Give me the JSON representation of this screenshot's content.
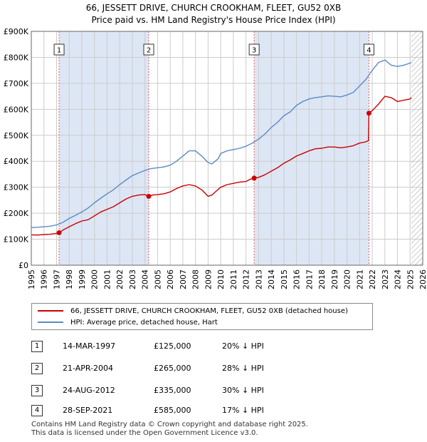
{
  "title_line1": "66, JESSETT DRIVE, CHURCH CROOKHAM, FLEET, GU52 0XB",
  "title_line2": "Price paid vs. HM Land Registry's House Price Index (HPI)",
  "colors": {
    "property": "#cc0000",
    "hpi": "#5b8ac6",
    "shade": "#dde6f4",
    "grid": "#cccccc",
    "marker_line": "#e06060"
  },
  "chart_data": {
    "type": "line",
    "title": "Price paid vs. HM Land Registry's House Price Index (HPI)",
    "xlabel": "",
    "ylabel": "",
    "xlim": [
      1995,
      2026
    ],
    "ylim": [
      0,
      900000
    ],
    "yticks": [
      0,
      100000,
      200000,
      300000,
      400000,
      500000,
      600000,
      700000,
      800000,
      900000
    ],
    "ytick_labels": [
      "£0",
      "£100K",
      "£200K",
      "£300K",
      "£400K",
      "£500K",
      "£600K",
      "£700K",
      "£800K",
      "£900K"
    ],
    "xticks": [
      1995,
      1996,
      1997,
      1998,
      1999,
      2000,
      2001,
      2002,
      2003,
      2004,
      2005,
      2006,
      2007,
      2008,
      2009,
      2010,
      2011,
      2012,
      2013,
      2014,
      2015,
      2016,
      2017,
      2018,
      2019,
      2020,
      2021,
      2022,
      2023,
      2024,
      2025,
      2026
    ],
    "shaded_x_ranges": [
      [
        1997.2,
        2004.3
      ],
      [
        2012.65,
        2021.74
      ]
    ],
    "hatched_after": 2025.1,
    "series": [
      {
        "name": "66, JESSETT DRIVE, CHURCH CROOKHAM, FLEET, GU52 0XB (detached house)",
        "x": [
          1995,
          1995.5,
          1996,
          1996.5,
          1997,
          1997.2,
          1997.5,
          1998,
          1998.5,
          1999,
          1999.5,
          2000,
          2000.5,
          2001,
          2001.5,
          2002,
          2002.5,
          2003,
          2003.5,
          2004,
          2004.3,
          2004.6,
          2005,
          2005.5,
          2006,
          2006.5,
          2007,
          2007.5,
          2008,
          2008.5,
          2009,
          2009.3,
          2009.8,
          2010,
          2010.5,
          2011,
          2011.5,
          2012,
          2012.3,
          2012.65,
          2013,
          2013.5,
          2014,
          2014.5,
          2015,
          2015.5,
          2016,
          2016.5,
          2017,
          2017.5,
          2018,
          2018.5,
          2019,
          2019.5,
          2020,
          2020.5,
          2021,
          2021.5,
          2021.7,
          2021.74,
          2022,
          2022.5,
          2023,
          2023.5,
          2024,
          2024.5,
          2025,
          2025.1
        ],
        "y": [
          117000,
          116000,
          118000,
          119000,
          122000,
          125000,
          135000,
          148000,
          160000,
          170000,
          175000,
          190000,
          205000,
          215000,
          225000,
          240000,
          255000,
          265000,
          270000,
          272000,
          265000,
          270000,
          272000,
          275000,
          282000,
          295000,
          305000,
          310000,
          305000,
          290000,
          265000,
          270000,
          292000,
          300000,
          310000,
          315000,
          320000,
          322000,
          330000,
          335000,
          338000,
          348000,
          362000,
          375000,
          392000,
          405000,
          420000,
          430000,
          440000,
          448000,
          450000,
          455000,
          455000,
          452000,
          455000,
          460000,
          470000,
          475000,
          480000,
          585000,
          595000,
          620000,
          650000,
          645000,
          630000,
          635000,
          640000,
          645000
        ]
      },
      {
        "name": "HPI: Average price, detached house, Hart",
        "x": [
          1995,
          1995.5,
          1996,
          1996.5,
          1997,
          1997.5,
          1998,
          1998.5,
          1999,
          1999.5,
          2000,
          2000.5,
          2001,
          2001.5,
          2002,
          2002.5,
          2003,
          2003.5,
          2004,
          2004.5,
          2005,
          2005.5,
          2006,
          2006.5,
          2007,
          2007.5,
          2008,
          2008.5,
          2009,
          2009.3,
          2009.8,
          2010,
          2010.5,
          2011,
          2011.5,
          2012,
          2012.5,
          2013,
          2013.5,
          2014,
          2014.5,
          2015,
          2015.5,
          2016,
          2016.5,
          2017,
          2017.5,
          2018,
          2018.5,
          2019,
          2019.5,
          2020,
          2020.5,
          2021,
          2021.5,
          2022,
          2022.5,
          2023,
          2023.5,
          2024,
          2024.5,
          2025,
          2025.1
        ],
        "y": [
          145000,
          146000,
          148000,
          150000,
          155000,
          165000,
          180000,
          192000,
          205000,
          220000,
          240000,
          258000,
          275000,
          290000,
          310000,
          328000,
          345000,
          355000,
          365000,
          372000,
          375000,
          378000,
          385000,
          400000,
          420000,
          440000,
          440000,
          420000,
          395000,
          390000,
          410000,
          430000,
          440000,
          445000,
          450000,
          458000,
          470000,
          485000,
          505000,
          530000,
          550000,
          575000,
          590000,
          615000,
          630000,
          640000,
          645000,
          648000,
          652000,
          650000,
          648000,
          655000,
          665000,
          690000,
          715000,
          750000,
          780000,
          790000,
          770000,
          765000,
          770000,
          778000,
          780000
        ]
      }
    ],
    "sale_points": [
      {
        "label": "1",
        "x": 1997.2,
        "y": 125000
      },
      {
        "label": "2",
        "x": 2004.3,
        "y": 265000
      },
      {
        "label": "3",
        "x": 2012.65,
        "y": 335000
      },
      {
        "label": "4",
        "x": 2021.74,
        "y": 585000
      }
    ]
  },
  "legend": {
    "property_label": "66, JESSETT DRIVE, CHURCH CROOKHAM, FLEET, GU52 0XB (detached house)",
    "hpi_label": "HPI: Average price, detached house, Hart"
  },
  "transactions": [
    {
      "num": "1",
      "date": "14-MAR-1997",
      "price": "£125,000",
      "hpi": "20% ↓ HPI"
    },
    {
      "num": "2",
      "date": "21-APR-2004",
      "price": "£265,000",
      "hpi": "28% ↓ HPI"
    },
    {
      "num": "3",
      "date": "24-AUG-2012",
      "price": "£335,000",
      "hpi": "30% ↓ HPI"
    },
    {
      "num": "4",
      "date": "28-SEP-2021",
      "price": "£585,000",
      "hpi": "17% ↓ HPI"
    }
  ],
  "footer_line1": "Contains HM Land Registry data © Crown copyright and database right 2025.",
  "footer_line2": "This data is licensed under the Open Government Licence v3.0."
}
